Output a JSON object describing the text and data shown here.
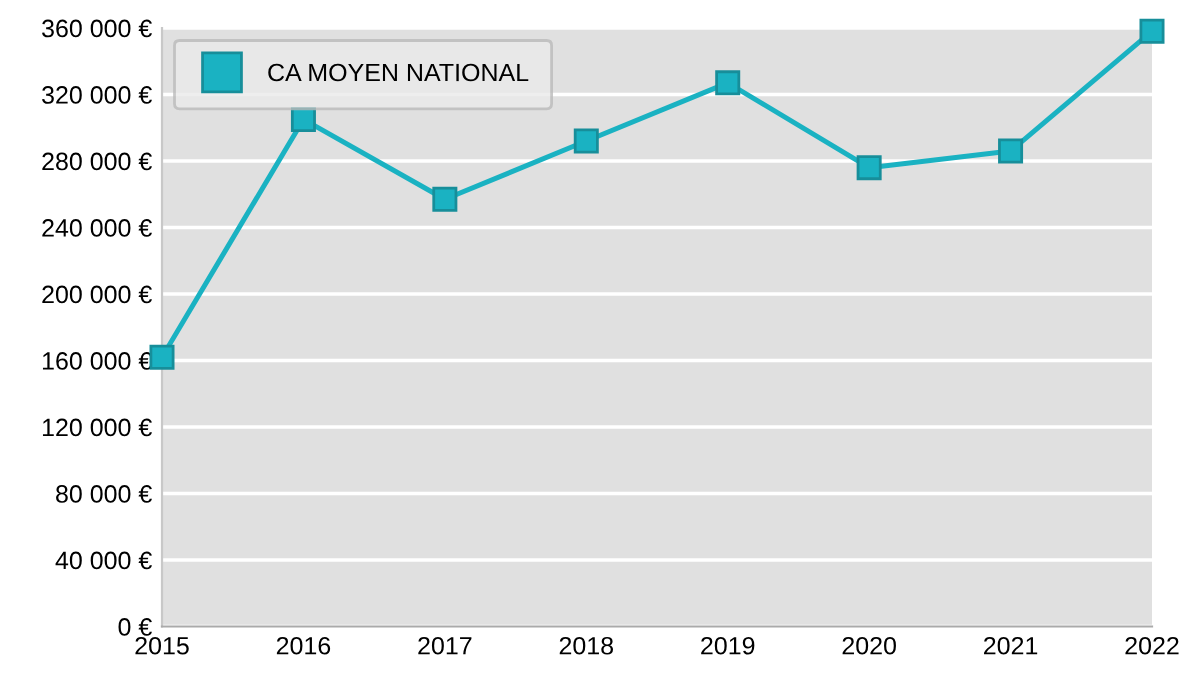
{
  "chart_data": {
    "type": "line",
    "x": [
      2015,
      2016,
      2017,
      2018,
      2019,
      2020,
      2021,
      2022
    ],
    "series": [
      {
        "name": "CA MOYEN NATIONAL",
        "color": "#1ab2c2",
        "values": [
          162000,
          305000,
          257000,
          292000,
          327000,
          276000,
          286000,
          358000
        ]
      }
    ],
    "xlim": [
      2015,
      2022
    ],
    "xticks": [
      2015,
      2016,
      2017,
      2018,
      2019,
      2020,
      2021,
      2022
    ],
    "ylim": [
      0,
      360000
    ],
    "yticks": [
      {
        "value": 0,
        "label": "0 €"
      },
      {
        "value": 40000,
        "label": "40 000 €"
      },
      {
        "value": 80000,
        "label": "80 000 €"
      },
      {
        "value": 120000,
        "label": "120 000 €"
      },
      {
        "value": 160000,
        "label": "160 000 €"
      },
      {
        "value": 200000,
        "label": "200 000 €"
      },
      {
        "value": 240000,
        "label": "240 000 €"
      },
      {
        "value": 280000,
        "label": "280 000 €"
      },
      {
        "value": 320000,
        "label": "320 000 €"
      },
      {
        "value": 360000,
        "label": "360 000 €"
      }
    ],
    "grid": "y",
    "legend": "top left",
    "marker": "square",
    "line_style": "solid"
  }
}
